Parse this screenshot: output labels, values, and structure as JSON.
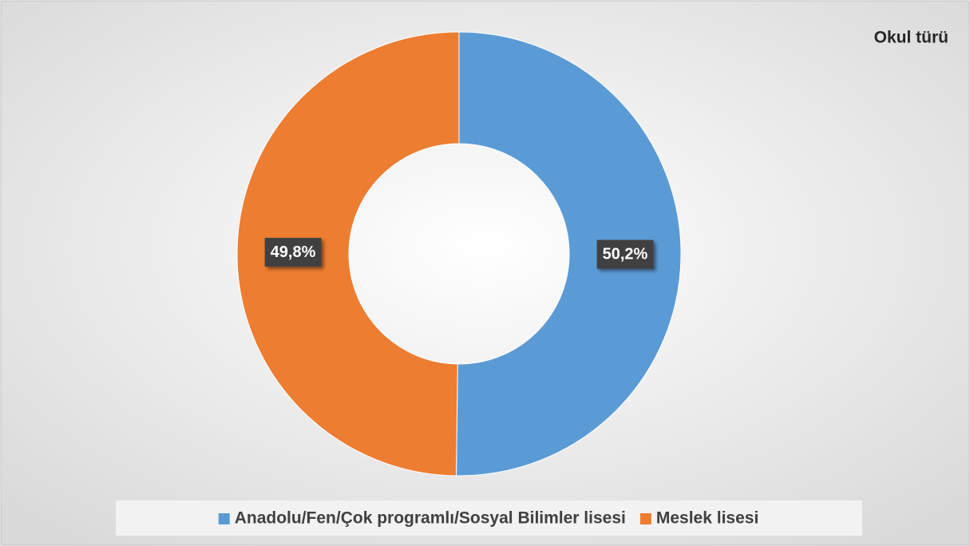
{
  "chart_data": {
    "type": "donut",
    "title": "Okul türü",
    "categories": [
      "Anadolu/Fen/Çok programlı/Sosyal Bilimler lisesi",
      "Meslek lisesi"
    ],
    "values": [
      50.2,
      49.8
    ],
    "value_labels": [
      "50,2%",
      "49,8%"
    ],
    "colors": [
      "#5b9bd5",
      "#ed7d31"
    ]
  }
}
